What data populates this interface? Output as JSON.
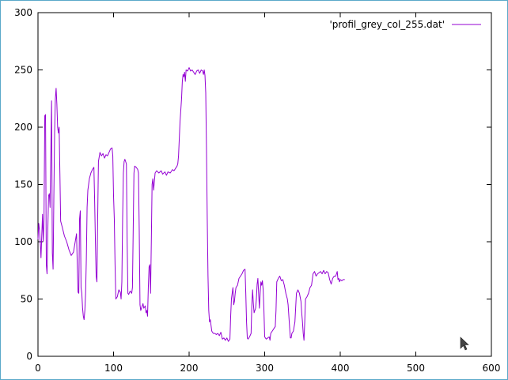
{
  "chart_data": {
    "type": "line",
    "title": "",
    "xlabel": "",
    "ylabel": "",
    "xlim": [
      0,
      600
    ],
    "ylim": [
      0,
      300
    ],
    "xticks": [
      0,
      100,
      200,
      300,
      400,
      500,
      600
    ],
    "yticks": [
      0,
      50,
      100,
      150,
      200,
      250,
      300
    ],
    "grid": false,
    "legend_position": "top-right",
    "series": [
      {
        "name": "'profil_grey_col_255.dat'",
        "color": "#9400d3",
        "points": [
          [
            0,
            102
          ],
          [
            1,
            116
          ],
          [
            2,
            110
          ],
          [
            3,
            100
          ],
          [
            4,
            86
          ],
          [
            5,
            105
          ],
          [
            6,
            124
          ],
          [
            7,
            100
          ],
          [
            8,
            120
          ],
          [
            9,
            210
          ],
          [
            10,
            211
          ],
          [
            11,
            80
          ],
          [
            12,
            72
          ],
          [
            13,
            110
          ],
          [
            14,
            140
          ],
          [
            15,
            142
          ],
          [
            16,
            130
          ],
          [
            17,
            180
          ],
          [
            18,
            223
          ],
          [
            19,
            90
          ],
          [
            20,
            76
          ],
          [
            21,
            140
          ],
          [
            22,
            195
          ],
          [
            23,
            225
          ],
          [
            24,
            234
          ],
          [
            25,
            220
          ],
          [
            26,
            200
          ],
          [
            27,
            195
          ],
          [
            28,
            200
          ],
          [
            29,
            160
          ],
          [
            30,
            118
          ],
          [
            32,
            113
          ],
          [
            35,
            105
          ],
          [
            38,
            100
          ],
          [
            41,
            93
          ],
          [
            44,
            88
          ],
          [
            47,
            91
          ],
          [
            50,
            103
          ],
          [
            51,
            107
          ],
          [
            52,
            80
          ],
          [
            53,
            56
          ],
          [
            54,
            55
          ],
          [
            55,
            120
          ],
          [
            56,
            127
          ],
          [
            57,
            60
          ],
          [
            58,
            55
          ],
          [
            59,
            42
          ],
          [
            60,
            35
          ],
          [
            61,
            32
          ],
          [
            62,
            40
          ],
          [
            63,
            55
          ],
          [
            64,
            85
          ],
          [
            65,
            130
          ],
          [
            66,
            145
          ],
          [
            67,
            150
          ],
          [
            68,
            155
          ],
          [
            70,
            160
          ],
          [
            72,
            163
          ],
          [
            74,
            165
          ],
          [
            75,
            135
          ],
          [
            76,
            100
          ],
          [
            77,
            70
          ],
          [
            78,
            65
          ],
          [
            79,
            120
          ],
          [
            80,
            170
          ],
          [
            82,
            178
          ],
          [
            84,
            175
          ],
          [
            86,
            177
          ],
          [
            88,
            173
          ],
          [
            90,
            176
          ],
          [
            92,
            175
          ],
          [
            94,
            178
          ],
          [
            96,
            181
          ],
          [
            98,
            182
          ],
          [
            99,
            175
          ],
          [
            100,
            140
          ],
          [
            101,
            120
          ],
          [
            102,
            80
          ],
          [
            103,
            50
          ],
          [
            105,
            52
          ],
          [
            107,
            58
          ],
          [
            109,
            56
          ],
          [
            110,
            50
          ],
          [
            111,
            65
          ],
          [
            112,
            120
          ],
          [
            113,
            160
          ],
          [
            114,
            170
          ],
          [
            115,
            172
          ],
          [
            116,
            170
          ],
          [
            117,
            168
          ],
          [
            118,
            100
          ],
          [
            119,
            55
          ],
          [
            120,
            54
          ],
          [
            122,
            57
          ],
          [
            124,
            55
          ],
          [
            125,
            60
          ],
          [
            126,
            110
          ],
          [
            127,
            160
          ],
          [
            128,
            166
          ],
          [
            130,
            165
          ],
          [
            132,
            163
          ],
          [
            133,
            160
          ],
          [
            134,
            110
          ],
          [
            135,
            45
          ],
          [
            136,
            40
          ],
          [
            138,
            44
          ],
          [
            139,
            46
          ],
          [
            140,
            42
          ],
          [
            142,
            44
          ],
          [
            143,
            38
          ],
          [
            144,
            40
          ],
          [
            145,
            35
          ],
          [
            146,
            60
          ],
          [
            147,
            78
          ],
          [
            148,
            80
          ],
          [
            149,
            55
          ],
          [
            150,
            100
          ],
          [
            151,
            150
          ],
          [
            152,
            155
          ],
          [
            153,
            145
          ],
          [
            155,
            160
          ],
          [
            157,
            162
          ],
          [
            160,
            160
          ],
          [
            163,
            162
          ],
          [
            165,
            159
          ],
          [
            168,
            161
          ],
          [
            170,
            158
          ],
          [
            172,
            161
          ],
          [
            175,
            160
          ],
          [
            178,
            163
          ],
          [
            180,
            162
          ],
          [
            182,
            164
          ],
          [
            184,
            166
          ],
          [
            185,
            168
          ],
          [
            186,
            175
          ],
          [
            187,
            190
          ],
          [
            188,
            205
          ],
          [
            189,
            215
          ],
          [
            190,
            225
          ],
          [
            191,
            240
          ],
          [
            192,
            246
          ],
          [
            193,
            244
          ],
          [
            194,
            248
          ],
          [
            195,
            240
          ],
          [
            196,
            250
          ],
          [
            198,
            249
          ],
          [
            200,
            252
          ],
          [
            202,
            249
          ],
          [
            204,
            250
          ],
          [
            206,
            248
          ],
          [
            208,
            246
          ],
          [
            210,
            249
          ],
          [
            212,
            250
          ],
          [
            214,
            247
          ],
          [
            216,
            250
          ],
          [
            218,
            249
          ],
          [
            219,
            246
          ],
          [
            220,
            250
          ],
          [
            221,
            245
          ],
          [
            222,
            230
          ],
          [
            223,
            180
          ],
          [
            224,
            120
          ],
          [
            225,
            70
          ],
          [
            226,
            40
          ],
          [
            227,
            30
          ],
          [
            228,
            32
          ],
          [
            230,
            22
          ],
          [
            232,
            20
          ],
          [
            234,
            20
          ],
          [
            236,
            19
          ],
          [
            238,
            20
          ],
          [
            240,
            18
          ],
          [
            242,
            21
          ],
          [
            244,
            15
          ],
          [
            246,
            16
          ],
          [
            248,
            14
          ],
          [
            250,
            16
          ],
          [
            252,
            13
          ],
          [
            254,
            15
          ],
          [
            255,
            35
          ],
          [
            256,
            50
          ],
          [
            258,
            60
          ],
          [
            259,
            45
          ],
          [
            260,
            48
          ],
          [
            261,
            55
          ],
          [
            262,
            60
          ],
          [
            264,
            62
          ],
          [
            266,
            68
          ],
          [
            268,
            70
          ],
          [
            270,
            72
          ],
          [
            272,
            75
          ],
          [
            274,
            76
          ],
          [
            275,
            55
          ],
          [
            276,
            30
          ],
          [
            277,
            16
          ],
          [
            278,
            15
          ],
          [
            280,
            17
          ],
          [
            282,
            20
          ],
          [
            283,
            45
          ],
          [
            284,
            58
          ],
          [
            285,
            46
          ],
          [
            286,
            38
          ],
          [
            287,
            40
          ],
          [
            288,
            42
          ],
          [
            289,
            50
          ],
          [
            290,
            63
          ],
          [
            291,
            68
          ],
          [
            292,
            55
          ],
          [
            293,
            42
          ],
          [
            294,
            55
          ],
          [
            295,
            65
          ],
          [
            296,
            62
          ],
          [
            297,
            66
          ],
          [
            298,
            58
          ],
          [
            299,
            40
          ],
          [
            300,
            17
          ],
          [
            302,
            15
          ],
          [
            304,
            16
          ],
          [
            306,
            17
          ],
          [
            307,
            14
          ],
          [
            308,
            20
          ],
          [
            310,
            22
          ],
          [
            312,
            24
          ],
          [
            314,
            26
          ],
          [
            315,
            40
          ],
          [
            316,
            65
          ],
          [
            318,
            68
          ],
          [
            320,
            70
          ],
          [
            322,
            66
          ],
          [
            324,
            67
          ],
          [
            326,
            62
          ],
          [
            328,
            55
          ],
          [
            330,
            50
          ],
          [
            331,
            45
          ],
          [
            332,
            35
          ],
          [
            333,
            25
          ],
          [
            334,
            16
          ],
          [
            335,
            16
          ],
          [
            336,
            20
          ],
          [
            338,
            22
          ],
          [
            340,
            30
          ],
          [
            342,
            55
          ],
          [
            344,
            58
          ],
          [
            346,
            55
          ],
          [
            348,
            48
          ],
          [
            349,
            38
          ],
          [
            350,
            30
          ],
          [
            351,
            20
          ],
          [
            352,
            14
          ],
          [
            353,
            30
          ],
          [
            354,
            50
          ],
          [
            356,
            52
          ],
          [
            358,
            55
          ],
          [
            360,
            60
          ],
          [
            362,
            62
          ],
          [
            364,
            72
          ],
          [
            366,
            74
          ],
          [
            368,
            70
          ],
          [
            370,
            72
          ],
          [
            372,
            73
          ],
          [
            374,
            74
          ],
          [
            376,
            72
          ],
          [
            378,
            75
          ],
          [
            380,
            72
          ],
          [
            382,
            74
          ],
          [
            384,
            73
          ],
          [
            386,
            67
          ],
          [
            388,
            63
          ],
          [
            390,
            68
          ],
          [
            392,
            70
          ],
          [
            394,
            70
          ],
          [
            396,
            74
          ],
          [
            397,
            67
          ],
          [
            398,
            68
          ],
          [
            399,
            65
          ],
          [
            400,
            67
          ],
          [
            402,
            66
          ],
          [
            404,
            67
          ],
          [
            406,
            67
          ]
        ]
      }
    ]
  }
}
